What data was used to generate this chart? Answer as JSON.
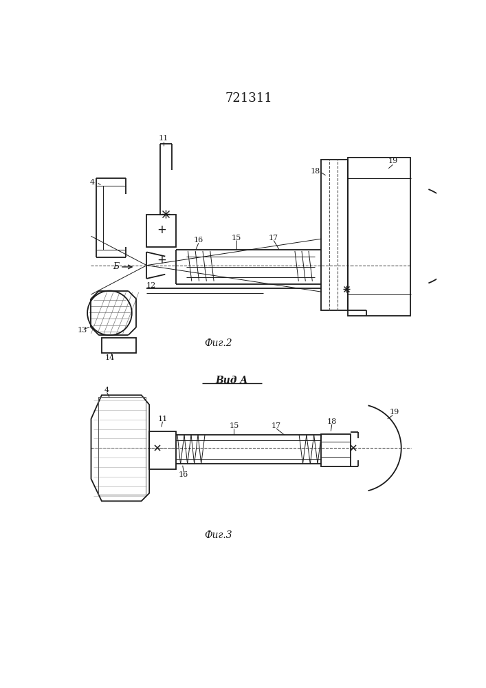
{
  "title": "721311",
  "fig2_label": "Фиг.2",
  "fig3_label": "Фиг.3",
  "vid_a_label": "Вид A",
  "b_arrow_label": "Б",
  "bg_color": "#ffffff",
  "line_color": "#1a1a1a",
  "lw_main": 1.3,
  "lw_thin": 0.7,
  "lw_thick": 1.8
}
